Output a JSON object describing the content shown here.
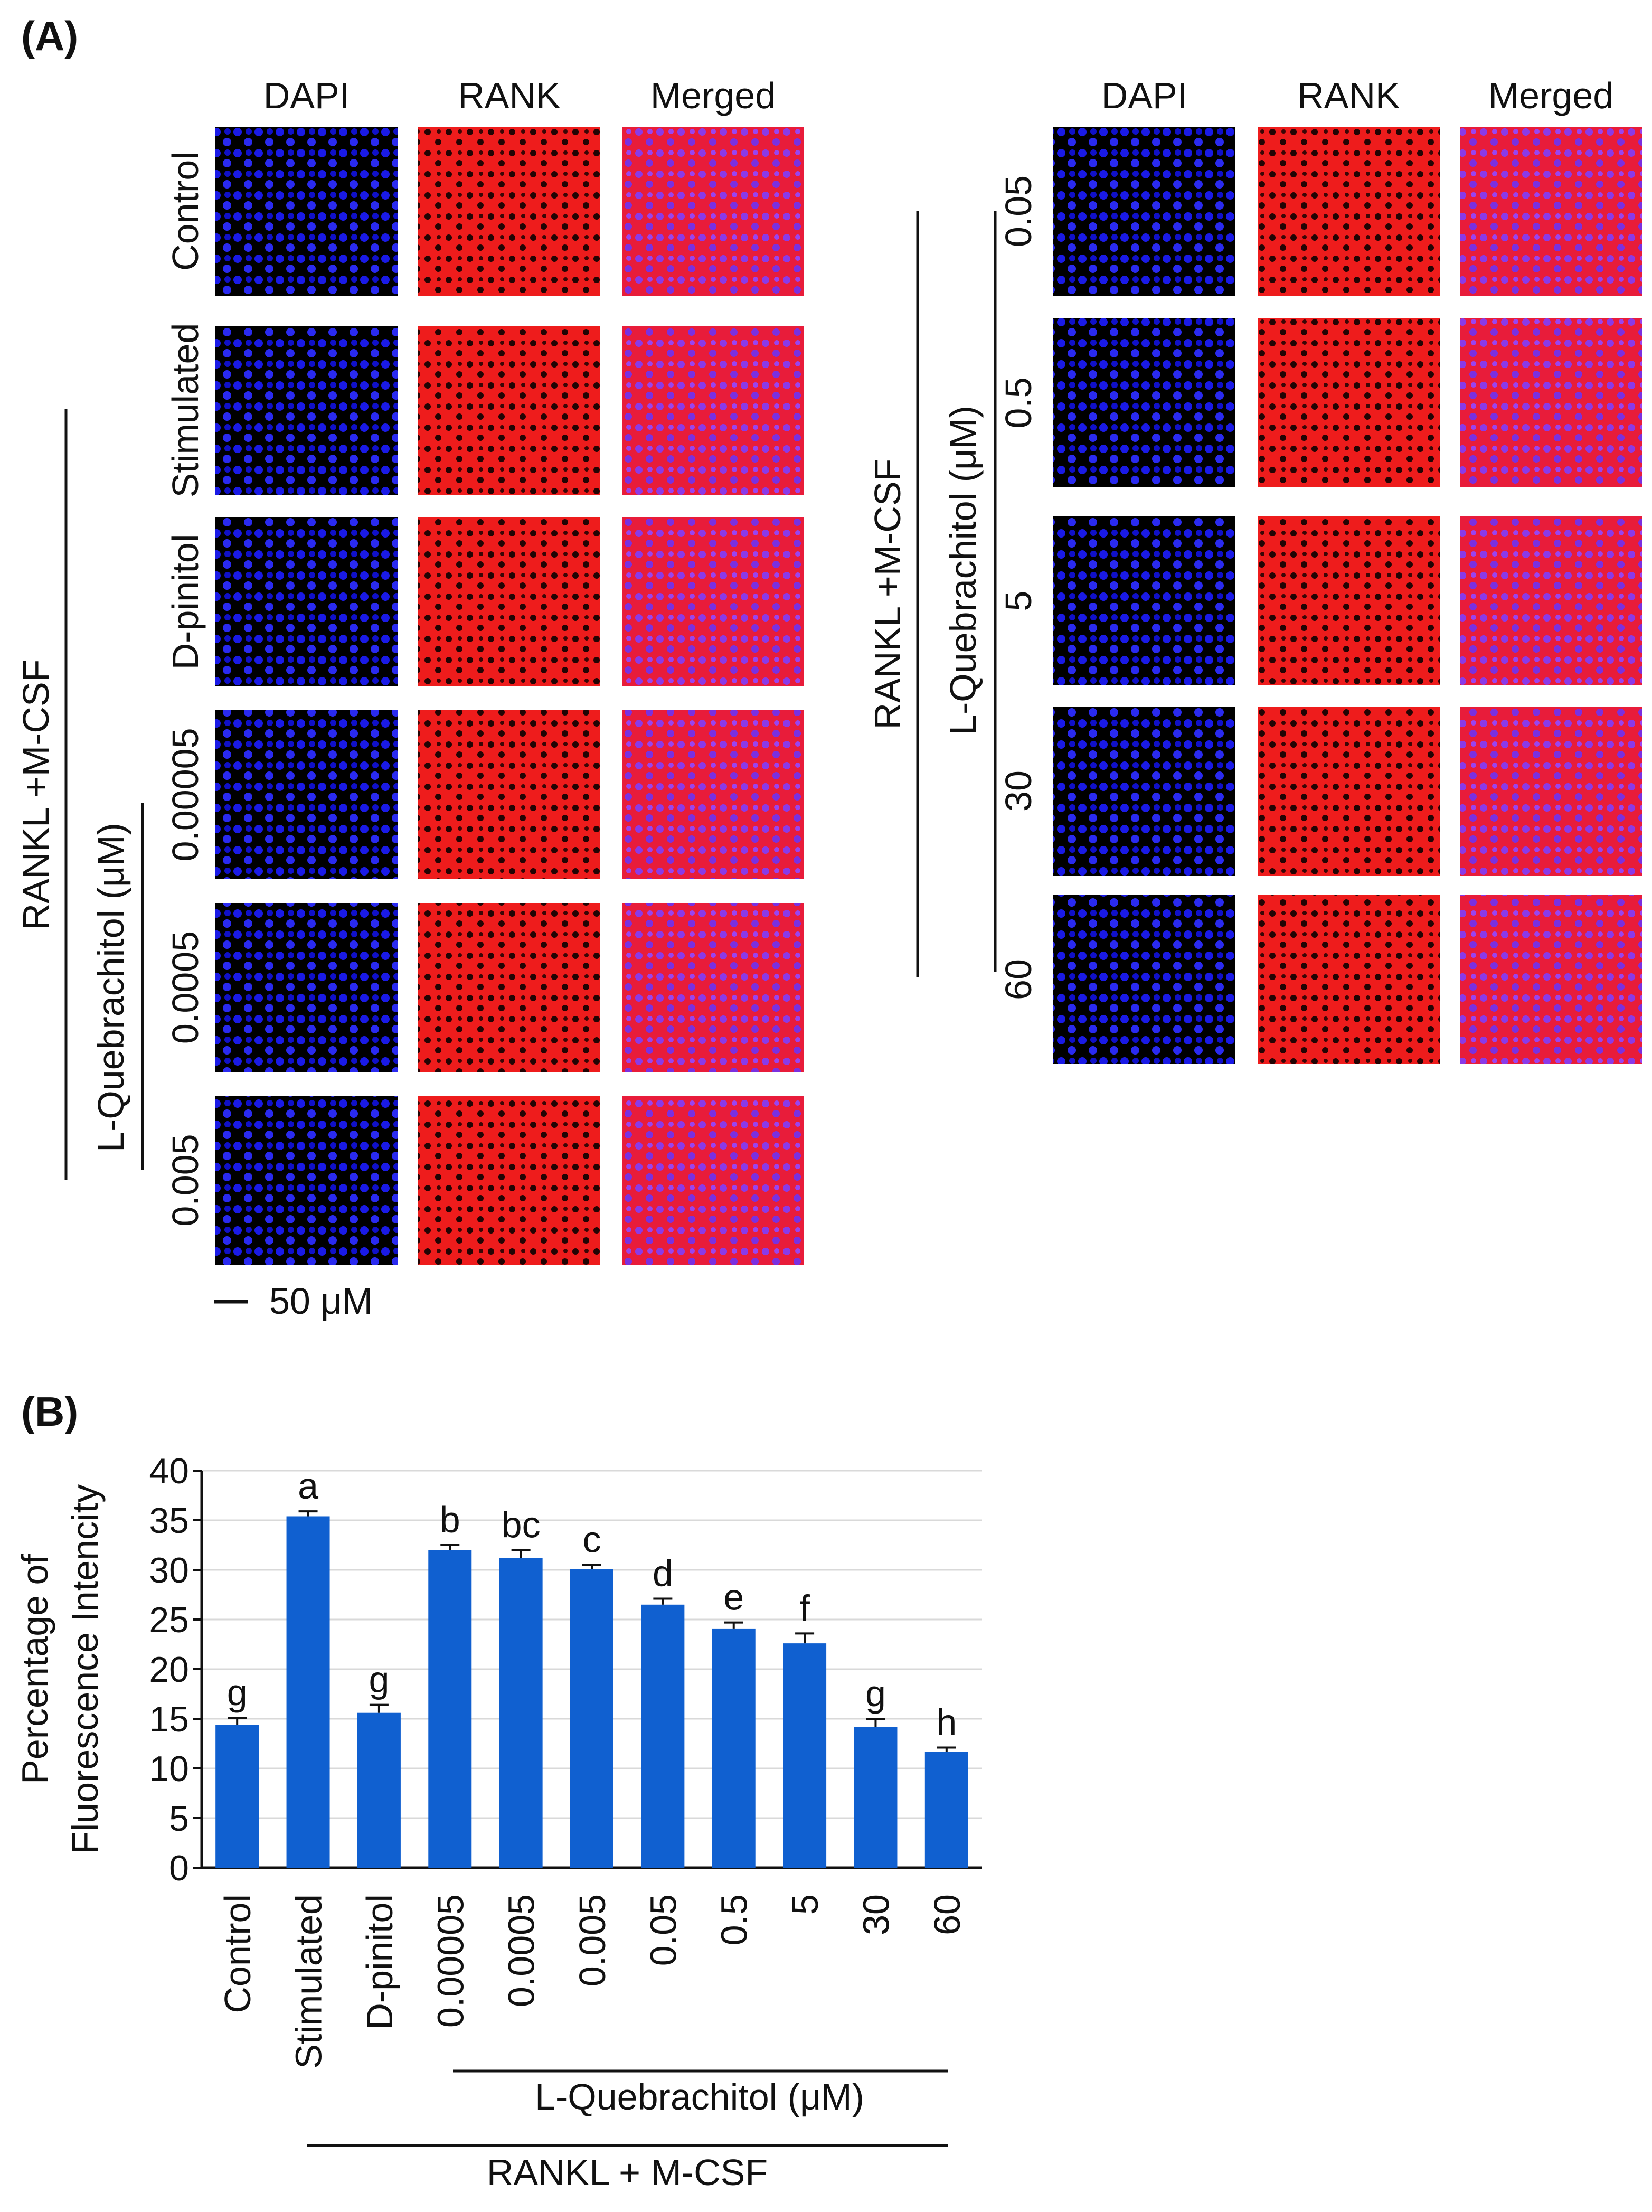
{
  "panel_a": {
    "label": "(A)",
    "left_group": {
      "columns": [
        "DAPI",
        "RANK",
        "Merged"
      ],
      "rows": [
        "Control",
        "Stimulated",
        "D-pinitol",
        "0.00005",
        "0.0005",
        "0.005"
      ],
      "bracket_outer": "RANKL +M-CSF",
      "bracket_inner": "L-Quebrachitol (μM)",
      "scale_bar": "50 μM"
    },
    "right_group": {
      "columns": [
        "DAPI",
        "RANK",
        "Merged"
      ],
      "rows": [
        "0.05",
        "0.5",
        "5",
        "30",
        "60"
      ],
      "bracket_outer": "RANKL +M-CSF",
      "bracket_inner": "L-Quebrachitol (μM)"
    },
    "colors": {
      "dapi": "#1a1ae6",
      "rank": "#ee1c1c",
      "merged_nucleus": "#c040e8",
      "background": "#000000"
    }
  },
  "panel_b": {
    "label": "(B)",
    "bracket_inner": "L-Quebrachitol (μM)",
    "bracket_outer": "RANKL + M-CSF"
  },
  "chart_data": {
    "type": "bar",
    "categories": [
      "Control",
      "Stimulated",
      "D-pinitol",
      "0.00005",
      "0.0005",
      "0.005",
      "0.05",
      "0.5",
      "5",
      "30",
      "60"
    ],
    "values": [
      14.4,
      35.4,
      15.6,
      32.0,
      31.2,
      30.1,
      26.5,
      24.1,
      22.6,
      14.2,
      11.7
    ],
    "errors": [
      0.7,
      0.5,
      0.8,
      0.5,
      0.8,
      0.4,
      0.6,
      0.6,
      1.0,
      0.8,
      0.4
    ],
    "significance": [
      "g",
      "a",
      "g",
      "b",
      "bc",
      "c",
      "d",
      "e",
      "f",
      "g",
      "h"
    ],
    "ylabel": [
      "Percentage of",
      "Fluorescence Intencity"
    ],
    "ylim": [
      0,
      40
    ],
    "yticks": [
      0,
      5,
      10,
      15,
      20,
      25,
      30,
      35,
      40
    ],
    "grid": true,
    "bar_color": "#1060d0"
  }
}
